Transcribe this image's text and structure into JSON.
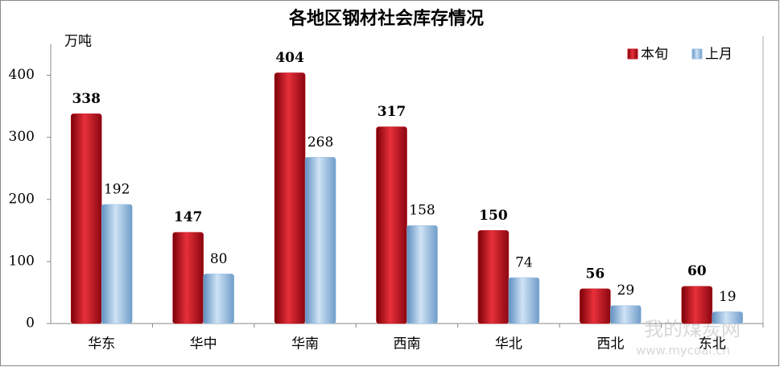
{
  "chart_data": {
    "type": "bar",
    "title": "各地区钢材社会库存情况",
    "y_label": "万吨",
    "categories": [
      "华东",
      "华中",
      "华南",
      "西南",
      "华北",
      "西北",
      "东北"
    ],
    "series": [
      {
        "name": "本旬",
        "color": "#c00f1c",
        "values": [
          338,
          147,
          404,
          317,
          150,
          56,
          60
        ]
      },
      {
        "name": "上月",
        "color": "#95bfe6",
        "values": [
          192,
          80,
          268,
          158,
          74,
          29,
          19
        ]
      }
    ],
    "ylim": [
      0,
      450
    ],
    "yticks": [
      0,
      100,
      200,
      300,
      400
    ],
    "legend": "top-right",
    "watermark": [
      "我的煤炭网",
      "www.mycoal.cn"
    ]
  }
}
